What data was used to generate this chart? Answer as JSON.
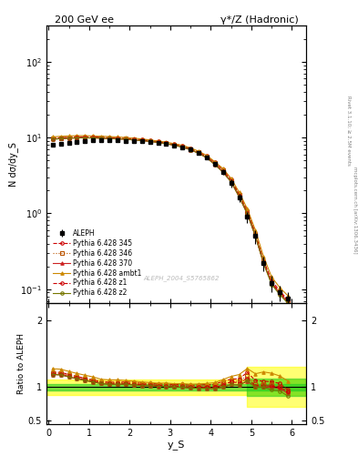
{
  "title_left": "200 GeV ee",
  "title_right": "γ*/Z (Hadronic)",
  "ylabel_main": "N dσ/dy_S",
  "ylabel_ratio": "Ratio to ALEPH",
  "xlabel": "y_S",
  "right_label_top": "Rivet 3.1.10; ≥ 2.5M events",
  "right_label_bot": "mcplots.cern.ch [arXiv:1306.3436]",
  "watermark": "ALEPH_2004_S5765862",
  "ylim_main": [
    0.065,
    300
  ],
  "ylim_ratio": [
    0.45,
    2.25
  ],
  "yticks_ratio": [
    0.5,
    1.0,
    2.0
  ],
  "xlim": [
    -0.05,
    6.35
  ],
  "aleph_x": [
    0.1,
    0.3,
    0.5,
    0.7,
    0.9,
    1.1,
    1.3,
    1.5,
    1.7,
    1.9,
    2.1,
    2.3,
    2.5,
    2.7,
    2.9,
    3.1,
    3.3,
    3.5,
    3.7,
    3.9,
    4.1,
    4.3,
    4.5,
    4.7,
    4.9,
    5.1,
    5.3,
    5.5,
    5.7,
    5.9
  ],
  "aleph_y": [
    8.0,
    8.2,
    8.5,
    8.8,
    9.0,
    9.2,
    9.3,
    9.3,
    9.2,
    9.1,
    9.0,
    8.9,
    8.7,
    8.5,
    8.2,
    7.9,
    7.5,
    7.0,
    6.3,
    5.5,
    4.5,
    3.5,
    2.5,
    1.6,
    0.9,
    0.5,
    0.22,
    0.12,
    0.09,
    0.075
  ],
  "aleph_err": [
    0.3,
    0.3,
    0.3,
    0.3,
    0.3,
    0.3,
    0.3,
    0.3,
    0.3,
    0.3,
    0.3,
    0.3,
    0.3,
    0.3,
    0.3,
    0.3,
    0.3,
    0.3,
    0.3,
    0.3,
    0.3,
    0.3,
    0.3,
    0.2,
    0.15,
    0.1,
    0.05,
    0.03,
    0.02,
    0.015
  ],
  "p345_y": [
    9.8,
    10.0,
    10.1,
    10.2,
    10.2,
    10.2,
    10.1,
    10.0,
    9.9,
    9.8,
    9.6,
    9.4,
    9.2,
    8.9,
    8.6,
    8.2,
    7.8,
    7.2,
    6.5,
    5.7,
    4.7,
    3.8,
    2.8,
    1.8,
    1.1,
    0.55,
    0.24,
    0.13,
    0.095,
    0.072
  ],
  "p346_y": [
    9.7,
    9.9,
    10.0,
    10.1,
    10.1,
    10.1,
    10.0,
    9.9,
    9.8,
    9.7,
    9.5,
    9.3,
    9.1,
    8.8,
    8.5,
    8.1,
    7.7,
    7.1,
    6.4,
    5.6,
    4.6,
    3.7,
    2.7,
    1.75,
    1.05,
    0.52,
    0.23,
    0.125,
    0.09,
    0.07
  ],
  "p370_y": [
    9.5,
    9.7,
    9.8,
    9.9,
    9.9,
    9.9,
    9.8,
    9.7,
    9.6,
    9.5,
    9.3,
    9.1,
    8.9,
    8.6,
    8.3,
    7.9,
    7.5,
    6.9,
    6.2,
    5.4,
    4.4,
    3.5,
    2.6,
    1.65,
    0.98,
    0.5,
    0.22,
    0.12,
    0.088,
    0.068
  ],
  "pambt_y": [
    10.2,
    10.4,
    10.5,
    10.6,
    10.6,
    10.5,
    10.4,
    10.3,
    10.2,
    10.0,
    9.8,
    9.6,
    9.3,
    9.0,
    8.7,
    8.3,
    7.9,
    7.3,
    6.6,
    5.8,
    4.8,
    3.9,
    2.9,
    1.9,
    1.15,
    0.6,
    0.27,
    0.145,
    0.105,
    0.082
  ],
  "pz1_y": [
    9.6,
    9.8,
    9.9,
    10.0,
    10.0,
    10.0,
    9.9,
    9.8,
    9.7,
    9.6,
    9.4,
    9.2,
    9.0,
    8.7,
    8.4,
    8.0,
    7.6,
    7.0,
    6.3,
    5.5,
    4.5,
    3.6,
    2.7,
    1.7,
    1.02,
    0.51,
    0.225,
    0.122,
    0.09,
    0.07
  ],
  "pz2_y": [
    9.5,
    9.7,
    9.8,
    9.9,
    9.9,
    9.9,
    9.8,
    9.7,
    9.6,
    9.5,
    9.3,
    9.1,
    8.9,
    8.6,
    8.3,
    7.9,
    7.5,
    6.9,
    6.2,
    5.4,
    4.4,
    3.5,
    2.6,
    1.65,
    0.99,
    0.5,
    0.22,
    0.115,
    0.085,
    0.065
  ],
  "color_aleph": "#000000",
  "color_345": "#cc0000",
  "color_346": "#bb5500",
  "color_370": "#cc2222",
  "color_ambt": "#cc8800",
  "color_z1": "#cc0000",
  "color_z2": "#777700",
  "band_green_half": 0.05,
  "band_yellow_half": 0.12,
  "ratio_345": [
    1.225,
    1.22,
    1.19,
    1.16,
    1.133,
    1.109,
    1.086,
    1.075,
    1.076,
    1.077,
    1.067,
    1.056,
    1.057,
    1.047,
    1.049,
    1.038,
    1.04,
    1.029,
    1.032,
    1.036,
    1.044,
    1.086,
    1.12,
    1.125,
    1.22,
    1.1,
    1.09,
    1.08,
    1.056,
    0.96
  ],
  "ratio_346": [
    1.213,
    1.207,
    1.176,
    1.148,
    1.122,
    1.098,
    1.075,
    1.065,
    1.065,
    1.066,
    1.056,
    1.045,
    1.046,
    1.035,
    1.037,
    1.025,
    1.027,
    1.014,
    1.016,
    1.018,
    1.022,
    1.057,
    1.08,
    1.094,
    1.167,
    1.04,
    1.045,
    1.042,
    1.0,
    0.933
  ],
  "ratio_370": [
    1.188,
    1.183,
    1.153,
    1.125,
    1.1,
    1.076,
    1.054,
    1.043,
    1.043,
    1.044,
    1.033,
    1.022,
    1.023,
    1.012,
    1.012,
    1.0,
    1.0,
    0.986,
    0.984,
    0.982,
    0.978,
    1.0,
    1.04,
    1.031,
    1.089,
    1.0,
    1.0,
    1.0,
    0.978,
    0.907
  ],
  "ratio_ambt": [
    1.275,
    1.268,
    1.235,
    1.205,
    1.178,
    1.152,
    1.118,
    1.108,
    1.109,
    1.099,
    1.089,
    1.078,
    1.069,
    1.059,
    1.061,
    1.051,
    1.053,
    1.043,
    1.048,
    1.055,
    1.067,
    1.114,
    1.16,
    1.188,
    1.278,
    1.2,
    1.227,
    1.208,
    1.167,
    1.093
  ],
  "ratio_z1": [
    1.2,
    1.195,
    1.165,
    1.136,
    1.111,
    1.087,
    1.065,
    1.054,
    1.054,
    1.055,
    1.044,
    1.034,
    1.034,
    1.024,
    1.024,
    1.013,
    1.013,
    1.0,
    1.0,
    1.0,
    1.0,
    1.029,
    1.08,
    1.063,
    1.133,
    1.02,
    1.023,
    1.017,
    1.0,
    0.933
  ],
  "ratio_z2": [
    1.188,
    1.183,
    1.153,
    1.125,
    1.1,
    1.076,
    1.054,
    1.043,
    1.043,
    1.044,
    1.033,
    1.022,
    1.023,
    1.012,
    1.012,
    1.0,
    1.0,
    0.986,
    0.984,
    0.982,
    0.978,
    1.0,
    1.04,
    1.031,
    1.1,
    1.0,
    1.0,
    0.958,
    0.944,
    0.867
  ]
}
